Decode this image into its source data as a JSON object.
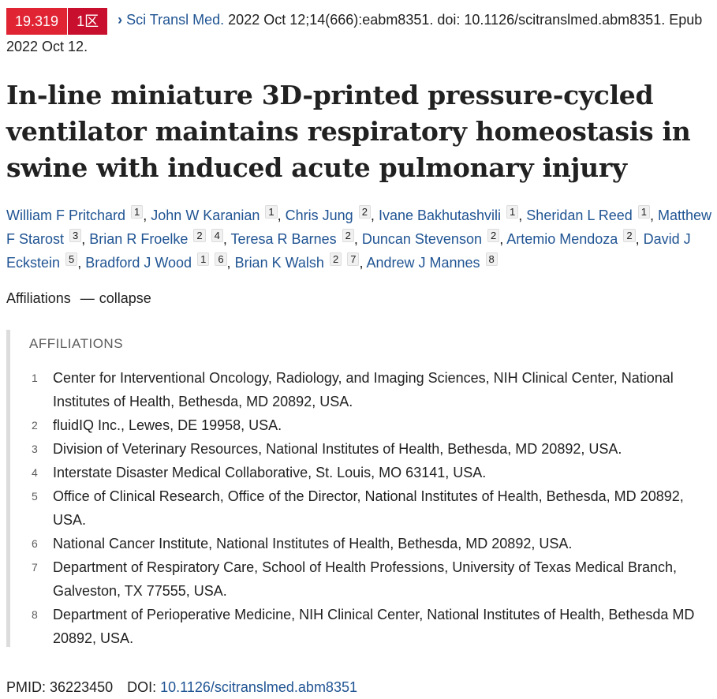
{
  "header": {
    "impact_factor": "19.319",
    "zone": "1区",
    "chevron": "›",
    "journal": "Sci Transl Med.",
    "citation": " 2022 Oct 12;14(666):eabm8351. doi: 10.1126/scitranslmed.abm8351. Epub 2022 Oct 12."
  },
  "title": "In-line miniature 3D-printed pressure-cycled ventilator maintains respiratory homeostasis in swine with induced acute pulmonary injury",
  "authors": [
    {
      "name": "William F Pritchard",
      "refs": [
        "1"
      ]
    },
    {
      "name": "John W Karanian",
      "refs": [
        "1"
      ]
    },
    {
      "name": "Chris Jung",
      "refs": [
        "2"
      ]
    },
    {
      "name": "Ivane Bakhutashvili",
      "refs": [
        "1"
      ]
    },
    {
      "name": "Sheridan L Reed",
      "refs": [
        "1"
      ]
    },
    {
      "name": "Matthew F Starost",
      "refs": [
        "3"
      ]
    },
    {
      "name": "Brian R Froelke",
      "refs": [
        "2",
        "4"
      ]
    },
    {
      "name": "Teresa R Barnes",
      "refs": [
        "2"
      ]
    },
    {
      "name": "Duncan Stevenson",
      "refs": [
        "2"
      ]
    },
    {
      "name": "Artemio Mendoza",
      "refs": [
        "2"
      ]
    },
    {
      "name": "David J Eckstein",
      "refs": [
        "5"
      ]
    },
    {
      "name": "Bradford J Wood",
      "refs": [
        "1",
        "6"
      ]
    },
    {
      "name": "Brian K Walsh",
      "refs": [
        "2",
        "7"
      ]
    },
    {
      "name": "Andrew J Mannes",
      "refs": [
        "8"
      ]
    }
  ],
  "affiliations_toggle": {
    "label": "Affiliations",
    "dash": "—",
    "action": "collapse"
  },
  "affiliations": {
    "heading": "AFFILIATIONS",
    "items": [
      {
        "num": "1",
        "text": "Center for Interventional Oncology, Radiology, and Imaging Sciences, NIH Clinical Center, National Institutes of Health, Bethesda, MD 20892, USA."
      },
      {
        "num": "2",
        "text": "fluidIQ Inc., Lewes, DE 19958, USA."
      },
      {
        "num": "3",
        "text": "Division of Veterinary Resources, National Institutes of Health, Bethesda, MD 20892, USA."
      },
      {
        "num": "4",
        "text": "Interstate Disaster Medical Collaborative, St. Louis, MO 63141, USA."
      },
      {
        "num": "5",
        "text": "Office of Clinical Research, Office of the Director, National Institutes of Health, Bethesda, MD 20892, USA."
      },
      {
        "num": "6",
        "text": "National Cancer Institute, National Institutes of Health, Bethesda, MD 20892, USA."
      },
      {
        "num": "7",
        "text": "Department of Respiratory Care, School of Health Professions, University of Texas Medical Branch, Galveston, TX 77555, USA."
      },
      {
        "num": "8",
        "text": "Department of Perioperative Medicine, NIH Clinical Center, National Institutes of Health, Bethesda MD 20892, USA."
      }
    ]
  },
  "identifiers": {
    "pmid_label": "PMID:",
    "pmid": "36223450",
    "doi_label": "DOI:",
    "doi": "10.1126/scitranslmed.abm8351"
  },
  "colors": {
    "link": "#205493",
    "badge_if": "#e02433",
    "badge_zone": "#c8102e"
  }
}
